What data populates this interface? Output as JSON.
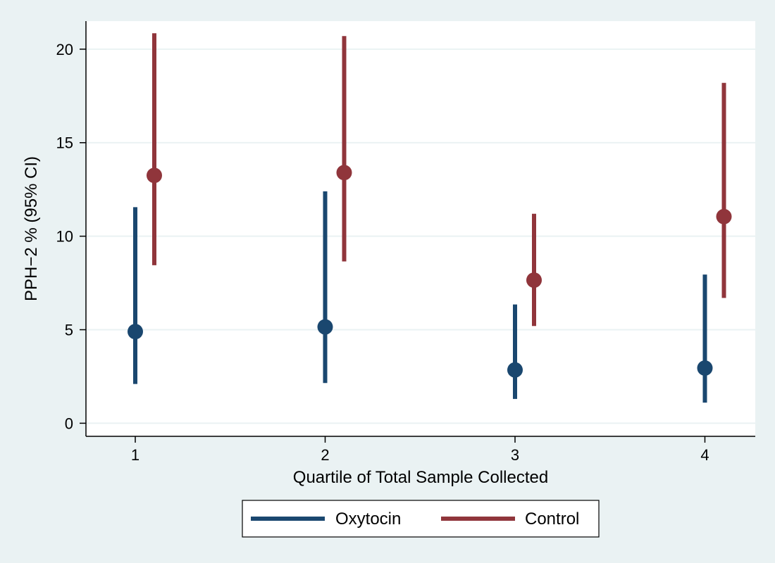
{
  "chart_data": {
    "type": "scatter",
    "title": "",
    "xlabel": "Quartile of Total Sample Collected",
    "ylabel": "PPH−2 % (95% CI)",
    "categories": [
      "1",
      "2",
      "3",
      "4"
    ],
    "ylim": [
      -0.7,
      21.5
    ],
    "yticks": [
      "0",
      "5",
      "10",
      "15",
      "20"
    ],
    "grid": true,
    "legend_position": "bottom",
    "series": [
      {
        "name": "Oxytocin",
        "color": "#1a476f",
        "estimate": [
          4.9,
          5.15,
          2.85,
          2.95
        ],
        "ci_low": [
          2.1,
          2.15,
          1.3,
          1.1
        ],
        "ci_high": [
          11.55,
          12.4,
          6.35,
          7.95
        ]
      },
      {
        "name": "Control",
        "color": "#90353b",
        "estimate": [
          13.25,
          13.4,
          7.65,
          11.05
        ],
        "ci_low": [
          8.45,
          8.65,
          5.2,
          6.7
        ],
        "ci_high": [
          20.85,
          20.7,
          11.2,
          18.2
        ]
      }
    ]
  }
}
